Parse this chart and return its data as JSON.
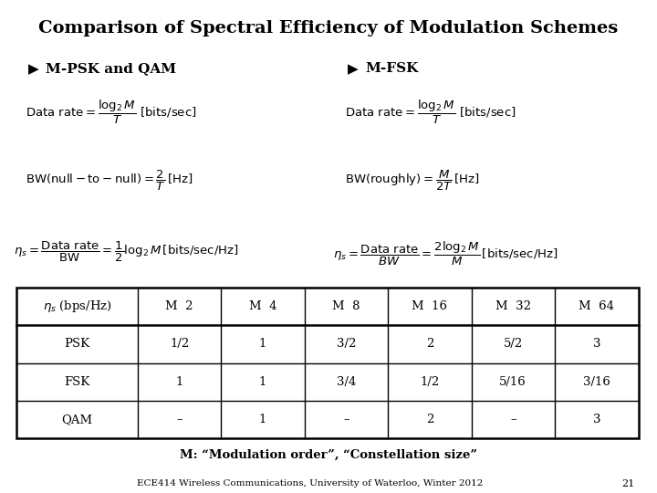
{
  "title": "Comparison of Spectral Efficiency of Modulation Schemes",
  "bg_color": "#ffffff",
  "left_heading_arrow": "Ø",
  "left_heading_text": "M-PSK and QAM",
  "right_heading_arrow": "Ø",
  "right_heading_text": "M-FSK",
  "table_headers": [
    "ηs (bps/Hz)",
    "M  2",
    "M  4",
    "M  8",
    "M  16",
    "M  32",
    "M  64"
  ],
  "table_rows": [
    [
      "PSK",
      "1/2",
      "1",
      "3/2",
      "2",
      "5/2",
      "3"
    ],
    [
      "FSK",
      "1",
      "1",
      "3/4",
      "1/2",
      "5/16",
      "3/16"
    ],
    [
      "QAM",
      "-",
      "1",
      "-",
      "2",
      "-",
      "3"
    ]
  ],
  "footnote": "M: “Modulation order”, “Constellation size”",
  "footer": "ECE414 Wireless Communications, University of Waterloo, Winter 2012",
  "page_num": "21"
}
